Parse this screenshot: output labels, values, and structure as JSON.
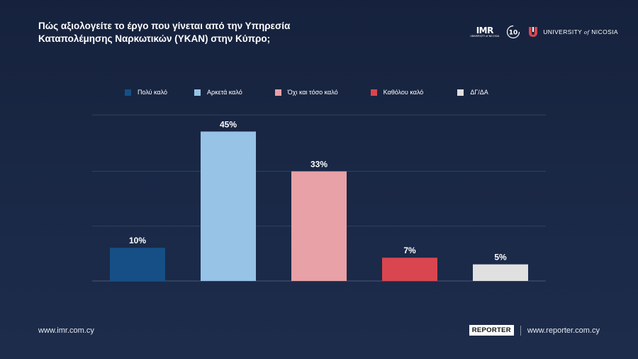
{
  "header": {
    "title_line1": "Πώς αξιολογείτε το έργο που γίνεται από την Υπηρεσία",
    "title_line2": "Καταπολέμησης Ναρκωτικών (ΥΚΑΝ) στην Κύπρο;"
  },
  "logos": {
    "imr": "IMR",
    "imr_sub": "UNIVERSITY of NICOSIA",
    "anniversary": "10",
    "unic_text": "UNIVERSITY",
    "unic_of": "of",
    "unic_text2": "NICOSIA"
  },
  "footer": {
    "left_url": "www.imr.com.cy",
    "reporter": "REPORTER",
    "right_url": "www.reporter.com.cy"
  },
  "chart_data": {
    "type": "bar",
    "categories": [
      "Πολύ καλό",
      "Αρκετά καλό",
      "Όχι και τόσο καλό",
      "Καθόλου καλό",
      "ΔΓ/ΔΑ"
    ],
    "values": [
      10,
      45,
      33,
      7,
      5
    ],
    "value_labels": [
      "10%",
      "45%",
      "33%",
      "7%",
      "5%"
    ],
    "colors": [
      "#154f86",
      "#96c3e6",
      "#e8a1a6",
      "#d9464f",
      "#e0e0e0"
    ],
    "unit": "%",
    "ylim": [
      0,
      50
    ],
    "grid": true,
    "legend_position": "top"
  }
}
